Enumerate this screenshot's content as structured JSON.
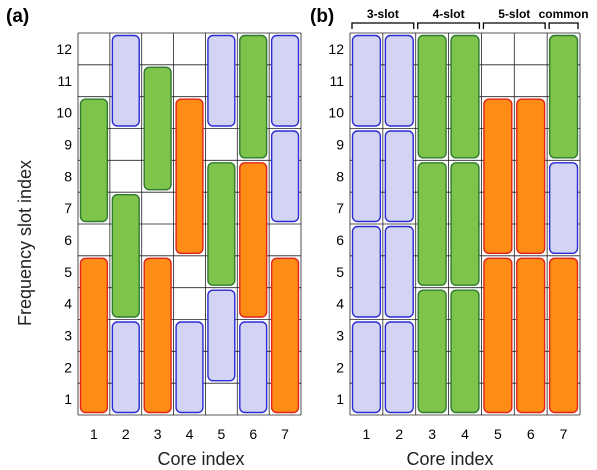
{
  "figure": {
    "ylabel": "Frequency slot index",
    "xlabel": "Core index",
    "colors": {
      "purple_fill": "#d3d3f3",
      "purple_stroke": "#2a2ad6",
      "green_fill": "#7ec44a",
      "green_stroke": "#2f7a2f",
      "orange_fill": "#ff8c14",
      "orange_stroke": "#e2231a"
    }
  },
  "panel_a": {
    "label": "(a)",
    "cores": [
      "1",
      "2",
      "3",
      "4",
      "5",
      "6",
      "7"
    ],
    "slots": [
      "1",
      "2",
      "3",
      "4",
      "5",
      "6",
      "7",
      "8",
      "9",
      "10",
      "11",
      "12"
    ],
    "blocks": [
      {
        "core": 1,
        "from": 1,
        "to": 5.5,
        "color": "orange"
      },
      {
        "core": 1,
        "from": 7,
        "to": 10.5,
        "color": "green"
      },
      {
        "core": 2,
        "from": 1,
        "to": 3.5,
        "color": "purple"
      },
      {
        "core": 2,
        "from": 4,
        "to": 7.5,
        "color": "green"
      },
      {
        "core": 2,
        "from": 10,
        "to": 12.5,
        "color": "purple"
      },
      {
        "core": 3,
        "from": 1,
        "to": 5.5,
        "color": "orange"
      },
      {
        "core": 3,
        "from": 8,
        "to": 11.5,
        "color": "green"
      },
      {
        "core": 4,
        "from": 1,
        "to": 3.5,
        "color": "purple"
      },
      {
        "core": 4,
        "from": 6,
        "to": 10.5,
        "color": "orange"
      },
      {
        "core": 5,
        "from": 2,
        "to": 4.5,
        "color": "purple"
      },
      {
        "core": 5,
        "from": 5,
        "to": 8.5,
        "color": "green"
      },
      {
        "core": 5,
        "from": 10,
        "to": 12.5,
        "color": "purple"
      },
      {
        "core": 6,
        "from": 1,
        "to": 3.5,
        "color": "purple"
      },
      {
        "core": 6,
        "from": 4,
        "to": 8.5,
        "color": "orange"
      },
      {
        "core": 6,
        "from": 9,
        "to": 12.5,
        "color": "green"
      },
      {
        "core": 7,
        "from": 1,
        "to": 5.5,
        "color": "orange"
      },
      {
        "core": 7,
        "from": 7,
        "to": 9.5,
        "color": "purple"
      },
      {
        "core": 7,
        "from": 10,
        "to": 12.5,
        "color": "purple"
      }
    ]
  },
  "panel_b": {
    "label": "(b)",
    "cores": [
      "1",
      "2",
      "3",
      "4",
      "5",
      "6",
      "7"
    ],
    "slots": [
      "1",
      "2",
      "3",
      "4",
      "5",
      "6",
      "7",
      "8",
      "9",
      "10",
      "11",
      "12"
    ],
    "groups": [
      {
        "label": "3-slot",
        "from_core": 1,
        "to_core": 2
      },
      {
        "label": "4-slot",
        "from_core": 3,
        "to_core": 4
      },
      {
        "label": "5-slot",
        "from_core": 5,
        "to_core": 6
      },
      {
        "label": "common",
        "from_core": 7,
        "to_core": 7
      }
    ],
    "blocks": [
      {
        "core": 1,
        "from": 1,
        "to": 3.5,
        "color": "purple"
      },
      {
        "core": 1,
        "from": 4,
        "to": 6.5,
        "color": "purple"
      },
      {
        "core": 1,
        "from": 7,
        "to": 9.5,
        "color": "purple"
      },
      {
        "core": 1,
        "from": 10,
        "to": 12.5,
        "color": "purple"
      },
      {
        "core": 2,
        "from": 1,
        "to": 3.5,
        "color": "purple"
      },
      {
        "core": 2,
        "from": 4,
        "to": 6.5,
        "color": "purple"
      },
      {
        "core": 2,
        "from": 7,
        "to": 9.5,
        "color": "purple"
      },
      {
        "core": 2,
        "from": 10,
        "to": 12.5,
        "color": "purple"
      },
      {
        "core": 3,
        "from": 1,
        "to": 4.5,
        "color": "green"
      },
      {
        "core": 3,
        "from": 5,
        "to": 8.5,
        "color": "green"
      },
      {
        "core": 3,
        "from": 9,
        "to": 12.5,
        "color": "green"
      },
      {
        "core": 4,
        "from": 1,
        "to": 4.5,
        "color": "green"
      },
      {
        "core": 4,
        "from": 5,
        "to": 8.5,
        "color": "green"
      },
      {
        "core": 4,
        "from": 9,
        "to": 12.5,
        "color": "green"
      },
      {
        "core": 5,
        "from": 1,
        "to": 5.5,
        "color": "orange"
      },
      {
        "core": 5,
        "from": 6,
        "to": 10.5,
        "color": "orange"
      },
      {
        "core": 6,
        "from": 1,
        "to": 5.5,
        "color": "orange"
      },
      {
        "core": 6,
        "from": 6,
        "to": 10.5,
        "color": "orange"
      },
      {
        "core": 7,
        "from": 1,
        "to": 5.5,
        "color": "orange"
      },
      {
        "core": 7,
        "from": 6,
        "to": 8.5,
        "color": "purple"
      },
      {
        "core": 7,
        "from": 9,
        "to": 12.5,
        "color": "green"
      }
    ]
  }
}
